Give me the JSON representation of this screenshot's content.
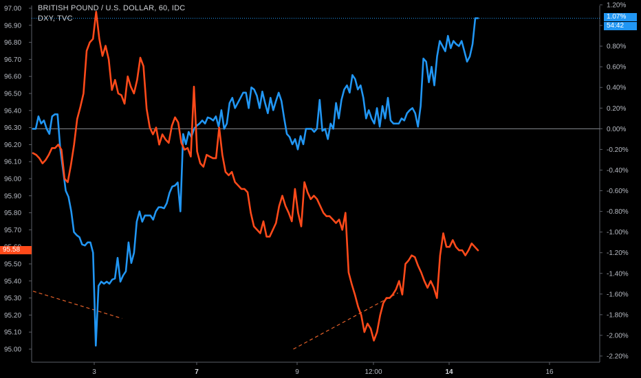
{
  "header": {
    "title": "BRITISH POUND / U.S. DOLLAR, 60, IDC",
    "subtitle": "DXY, TVC"
  },
  "badges": {
    "left_price": "95.58",
    "right_pct": "1.07%",
    "right_timer": "54:42"
  },
  "colors": {
    "background": "#000000",
    "gbp_line": "#2196f3",
    "dxy_line": "#ff4a1a",
    "trend_dash": "#e8622a",
    "zero_line": "#8a8d93",
    "axis": "#5d6068"
  },
  "chart_data": {
    "type": "line",
    "x_labels": [
      "3",
      "7",
      "9",
      "12:00",
      "14",
      "16"
    ],
    "x_labels_bold": [
      "7",
      "14"
    ],
    "left_axis": {
      "ticks": [
        "97.00",
        "96.90",
        "96.80",
        "96.70",
        "96.60",
        "96.50",
        "96.40",
        "96.30",
        "96.20",
        "96.10",
        "96.00",
        "95.90",
        "95.80",
        "95.70",
        "95.60",
        "95.50",
        "95.40",
        "95.30",
        "95.20",
        "95.10",
        "95.00"
      ],
      "range": [
        95.0,
        97.0
      ]
    },
    "right_axis": {
      "ticks": [
        "1.20%",
        "1.00%",
        "0.80%",
        "0.60%",
        "0.40%",
        "0.20%",
        "0.00%",
        "-0.20%",
        "-0.40%",
        "-0.60%",
        "-0.80%",
        "-1.00%",
        "-1.20%",
        "-1.40%",
        "-1.60%",
        "-1.80%",
        "-2.00%",
        "-2.20%"
      ],
      "range": [
        -2.2,
        1.2
      ]
    },
    "zero_line_pct": 0.0,
    "last_value_line_pct": 1.07,
    "series": [
      {
        "axis": "right",
        "color": "#2196f3",
        "values": [
          0.0,
          0.0,
          0.12,
          0.05,
          0.08,
          0.0,
          -0.05,
          0.12,
          0.14,
          0.14,
          -0.2,
          -0.4,
          -0.6,
          -0.66,
          -0.8,
          -1.0,
          -1.03,
          -1.05,
          -1.12,
          -1.13,
          -1.1,
          -1.1,
          -1.2,
          -2.1,
          -1.52,
          -1.48,
          -1.5,
          -1.48,
          -1.5,
          -1.46,
          -1.45,
          -1.25,
          -1.48,
          -1.42,
          -1.38,
          -1.1,
          -1.3,
          -1.2,
          -0.9,
          -0.8,
          -0.9,
          -0.84,
          -0.84,
          -0.84,
          -0.88,
          -0.8,
          -0.76,
          -0.76,
          -0.77,
          -0.72,
          -0.62,
          -0.56,
          -0.55,
          -0.52,
          -0.8,
          -0.05,
          -0.15,
          -0.03,
          -0.08,
          0.0,
          0.03,
          0.05,
          0.08,
          0.05,
          0.11,
          0.1,
          0.08,
          0.12,
          0.02,
          0.18,
          0.0,
          0.05,
          0.25,
          0.3,
          0.2,
          0.25,
          0.3,
          0.35,
          0.35,
          0.2,
          0.4,
          0.38,
          0.32,
          0.2,
          0.36,
          0.25,
          0.15,
          0.3,
          0.18,
          0.27,
          0.35,
          0.27,
          0.1,
          -0.05,
          -0.08,
          -0.15,
          -0.1,
          -0.2,
          -0.07,
          -0.15,
          0.0,
          0.0,
          0.0,
          -0.03,
          0.0,
          0.28,
          -0.02,
          0.0,
          -0.1,
          0.05,
          0.0,
          0.25,
          0.1,
          0.28,
          0.38,
          0.42,
          0.35,
          0.52,
          0.48,
          0.38,
          0.42,
          0.3,
          0.1,
          0.18,
          0.1,
          0.05,
          0.2,
          0.02,
          0.22,
          0.1,
          0.3,
          0.08,
          0.05,
          0.05,
          0.05,
          0.1,
          0.08,
          0.15,
          0.18,
          0.2,
          0.15,
          0.02,
          0.22,
          0.68,
          0.65,
          0.45,
          0.6,
          0.42,
          0.7,
          0.85,
          0.8,
          0.75,
          0.9,
          0.78,
          0.85,
          0.82,
          0.8,
          0.85,
          0.75,
          0.65,
          0.7,
          0.82,
          1.07,
          1.07
        ]
      },
      {
        "axis": "left",
        "color": "#ff4a1a",
        "values": [
          96.15,
          96.14,
          96.12,
          96.09,
          96.11,
          96.14,
          96.18,
          96.18,
          96.2,
          96.17,
          96.0,
          95.98,
          96.08,
          96.2,
          96.35,
          96.42,
          96.5,
          96.75,
          96.8,
          96.82,
          96.98,
          96.82,
          96.72,
          96.78,
          96.7,
          96.52,
          96.58,
          96.5,
          96.49,
          96.44,
          96.6,
          96.54,
          96.5,
          96.58,
          96.71,
          96.66,
          96.41,
          96.3,
          96.26,
          96.3,
          96.2,
          96.26,
          96.23,
          96.21,
          96.31,
          96.36,
          96.33,
          96.21,
          96.17,
          96.18,
          96.13,
          96.54,
          96.16,
          96.09,
          96.07,
          96.14,
          96.13,
          96.12,
          96.12,
          96.3,
          96.14,
          96.04,
          96.02,
          96.04,
          95.98,
          95.96,
          95.94,
          95.94,
          95.92,
          95.8,
          95.72,
          95.7,
          95.68,
          95.75,
          95.66,
          95.66,
          95.7,
          95.74,
          95.84,
          95.9,
          95.84,
          95.8,
          95.75,
          95.94,
          95.8,
          95.72,
          95.98,
          95.92,
          95.88,
          95.9,
          95.88,
          95.84,
          95.8,
          95.78,
          95.78,
          95.76,
          95.74,
          95.76,
          95.7,
          95.8,
          95.45,
          95.38,
          95.32,
          95.25,
          95.2,
          95.1,
          95.15,
          95.12,
          95.05,
          95.1,
          95.2,
          95.27,
          95.3,
          95.3,
          95.32,
          95.35,
          95.4,
          95.32,
          95.5,
          95.52,
          95.55,
          95.54,
          95.49,
          95.45,
          95.4,
          95.36,
          95.4,
          95.36,
          95.3,
          95.55,
          95.68,
          95.6,
          95.6,
          95.64,
          95.6,
          95.58,
          95.58,
          95.55,
          95.58,
          95.62,
          95.6,
          95.58
        ]
      }
    ],
    "trendlines": [
      {
        "axis": "left",
        "from": [
          0.0,
          95.34
        ],
        "to": [
          0.2,
          95.18
        ]
      },
      {
        "axis": "left",
        "from": [
          0.585,
          95.0
        ],
        "to": [
          0.82,
          95.33
        ]
      }
    ]
  }
}
